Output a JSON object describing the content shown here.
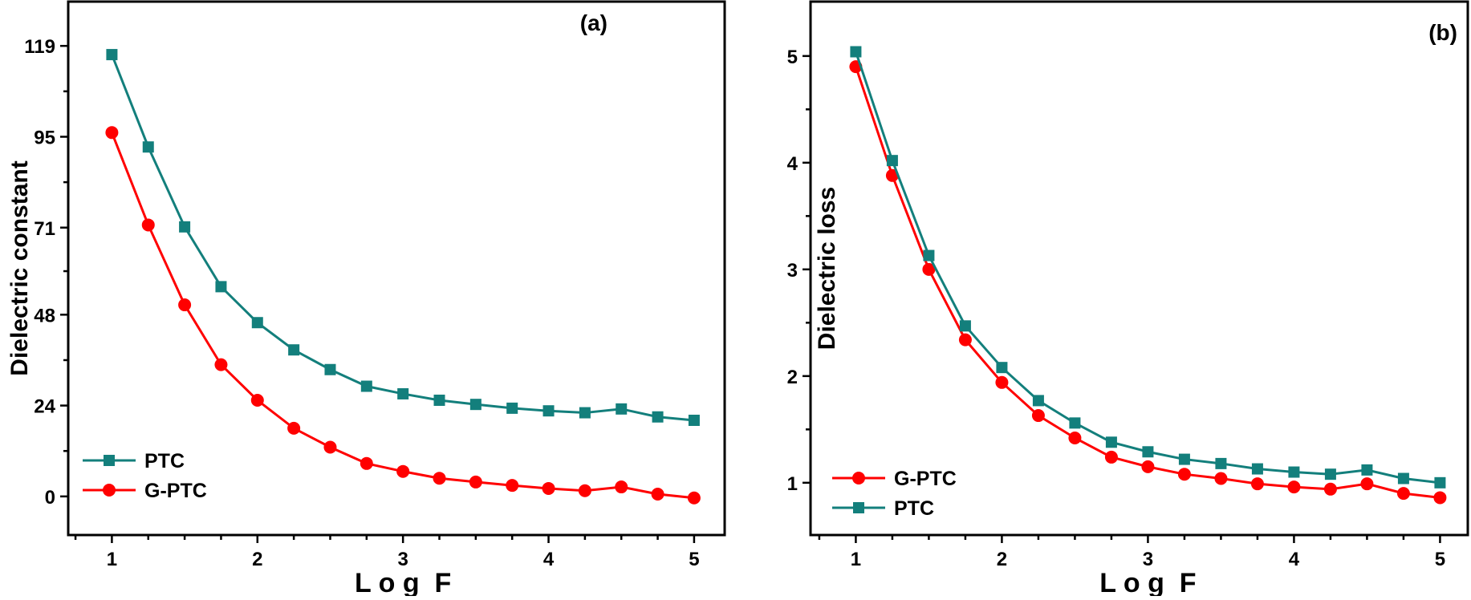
{
  "colors": {
    "PTC": "#137f7c",
    "G-PTC": "#ff0000",
    "axis": "#000000"
  },
  "chart_data": [
    {
      "type": "line",
      "panel_label": "(a)",
      "xlabel": "L o g  F",
      "ylabel": "Dielectric constant",
      "xlim": [
        0.7,
        5.21
      ],
      "ylim": [
        -10.2,
        130.7
      ],
      "xticks": [
        1,
        2,
        3,
        4,
        5
      ],
      "yticks": [
        0,
        24,
        48,
        71,
        95,
        119
      ],
      "grid": false,
      "legend_placement": "bottom-left",
      "x": [
        1,
        1.25,
        1.5,
        1.75,
        2,
        2.25,
        2.5,
        2.75,
        3,
        3.25,
        3.5,
        3.75,
        4,
        4.25,
        4.5,
        4.75,
        5
      ],
      "series": [
        {
          "name": "PTC",
          "marker": "square",
          "values": [
            116.7,
            92.3,
            71.2,
            55.4,
            45.9,
            38.7,
            33.5,
            29.1,
            27.1,
            25.4,
            24.3,
            23.3,
            22.6,
            22.1,
            23.1,
            21.0,
            20.1
          ]
        },
        {
          "name": "G-PTC",
          "marker": "circle",
          "values": [
            96.1,
            71.7,
            50.6,
            34.8,
            25.4,
            18.0,
            13.0,
            8.7,
            6.6,
            4.8,
            3.8,
            2.9,
            2.1,
            1.5,
            2.5,
            0.6,
            -0.4
          ]
        }
      ]
    },
    {
      "type": "line",
      "panel_label": "(b)",
      "xlabel": "L o g  F",
      "ylabel": "Dielectric loss",
      "xlim": [
        0.69,
        5.19
      ],
      "ylim": [
        0.51,
        5.51
      ],
      "xticks": [
        1,
        2,
        3,
        4,
        5
      ],
      "yticks": [
        1,
        2,
        3,
        4,
        5
      ],
      "grid": false,
      "legend_placement": "bottom-left",
      "x": [
        1,
        1.25,
        1.5,
        1.75,
        2,
        2.25,
        2.5,
        2.75,
        3,
        3.25,
        3.5,
        3.75,
        4,
        4.25,
        4.5,
        4.75,
        5
      ],
      "series": [
        {
          "name": "G-PTC",
          "marker": "circle",
          "values": [
            4.9,
            3.88,
            3.0,
            2.34,
            1.94,
            1.63,
            1.42,
            1.24,
            1.15,
            1.08,
            1.04,
            0.99,
            0.96,
            0.94,
            0.99,
            0.9,
            0.86
          ]
        },
        {
          "name": "PTC",
          "marker": "square",
          "values": [
            5.04,
            4.02,
            3.13,
            2.47,
            2.08,
            1.77,
            1.56,
            1.38,
            1.29,
            1.22,
            1.18,
            1.13,
            1.1,
            1.08,
            1.12,
            1.04,
            1.0
          ]
        }
      ]
    }
  ]
}
